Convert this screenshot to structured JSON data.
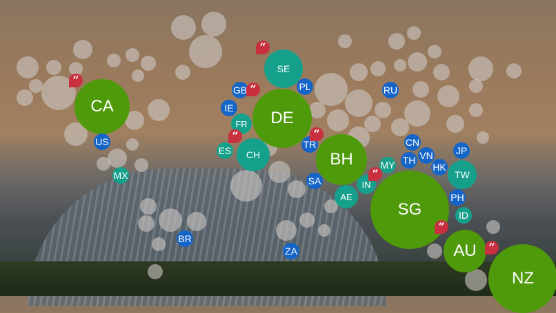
{
  "colors": {
    "large": "#4f9a0a",
    "medium": "#15a08c",
    "small": "#1565c8",
    "quote": "#c8303f"
  },
  "quote_icon": "quote-icon",
  "quote_glyph": "“",
  "countries": [
    {
      "code": "CA",
      "size": "large"
    },
    {
      "code": "US",
      "size": "small"
    },
    {
      "code": "MX",
      "size": "medium"
    },
    {
      "code": "BR",
      "size": "small"
    },
    {
      "code": "SE",
      "size": "medium"
    },
    {
      "code": "PL",
      "size": "small"
    },
    {
      "code": "GB",
      "size": "small"
    },
    {
      "code": "IE",
      "size": "small"
    },
    {
      "code": "FR",
      "size": "medium"
    },
    {
      "code": "DE",
      "size": "large"
    },
    {
      "code": "ES",
      "size": "medium"
    },
    {
      "code": "CH",
      "size": "medium"
    },
    {
      "code": "TR",
      "size": "small"
    },
    {
      "code": "BH",
      "size": "large"
    },
    {
      "code": "SA",
      "size": "small"
    },
    {
      "code": "AE",
      "size": "medium"
    },
    {
      "code": "ZA",
      "size": "small"
    },
    {
      "code": "RU",
      "size": "small"
    },
    {
      "code": "CN",
      "size": "small"
    },
    {
      "code": "VN",
      "size": "small"
    },
    {
      "code": "TH",
      "size": "small"
    },
    {
      "code": "MY",
      "size": "medium"
    },
    {
      "code": "IN",
      "size": "medium"
    },
    {
      "code": "JP",
      "size": "small"
    },
    {
      "code": "HK",
      "size": "small"
    },
    {
      "code": "TW",
      "size": "medium"
    },
    {
      "code": "PH",
      "size": "small"
    },
    {
      "code": "ID",
      "size": "medium"
    },
    {
      "code": "SG",
      "size": "large"
    },
    {
      "code": "AU",
      "size": "large"
    },
    {
      "code": "NZ",
      "size": "large"
    }
  ]
}
